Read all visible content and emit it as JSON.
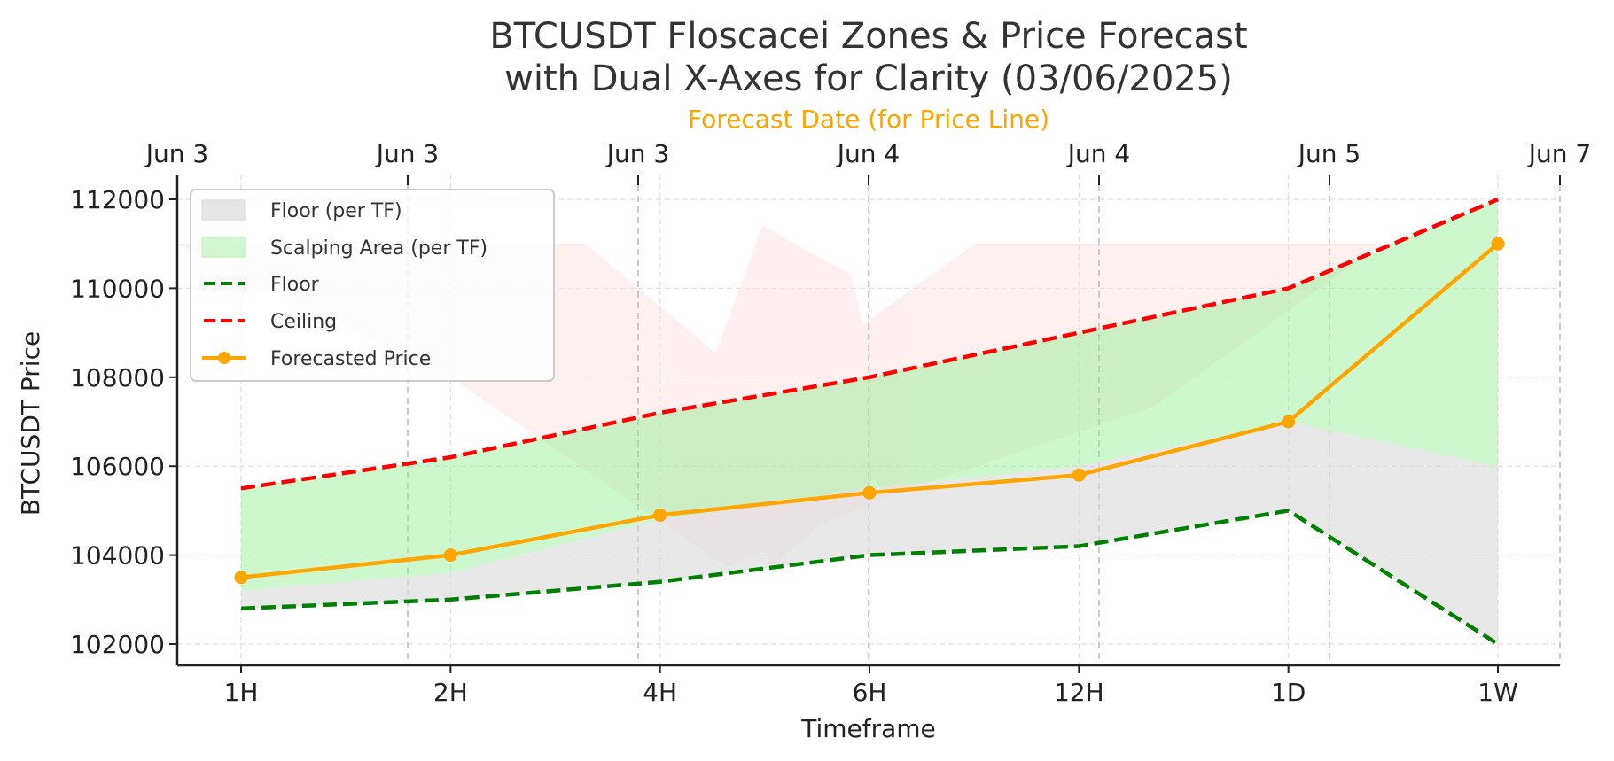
{
  "chart_data": {
    "type": "line",
    "title_line1": "BTCUSDT Floscacei Zones & Price Forecast",
    "title_line2": "with Dual X-Axes for Clarity (03/06/2025)",
    "xlabel": "Timeframe",
    "ylabel": "BTCUSDT Price",
    "top_xlabel": "Forecast Date (for Price Line)",
    "categories": [
      "1H",
      "2H",
      "4H",
      "6H",
      "12H",
      "1D",
      "1W"
    ],
    "top_ticks": [
      "Jun 3",
      "Jun 3",
      "Jun 3",
      "Jun 4",
      "Jun 4",
      "Jun 5",
      "Jun 7"
    ],
    "ylim": [
      101500,
      112500
    ],
    "yticks": [
      102000,
      104000,
      106000,
      108000,
      110000,
      112000
    ],
    "grid": true,
    "legend_position": "top-left",
    "series": [
      {
        "name": "Floor",
        "style": "dashed",
        "color": "#008000",
        "values": [
          102800,
          103000,
          103400,
          104000,
          104200,
          105000,
          102000
        ]
      },
      {
        "name": "Ceiling",
        "style": "dashed",
        "color": "#ff0000",
        "values": [
          105500,
          106200,
          107200,
          108000,
          109000,
          110000,
          112000
        ]
      },
      {
        "name": "Forecasted Price",
        "style": "solid-markers",
        "color": "#ffa500",
        "values": [
          103500,
          104000,
          104900,
          105400,
          105800,
          107000,
          111000
        ]
      }
    ],
    "areas": [
      {
        "name": "Floor (per TF)",
        "color": "#d9d9d9",
        "lower": [
          102800,
          103000,
          103400,
          104000,
          104200,
          105000,
          102000
        ],
        "upper": [
          103200,
          103600,
          104800,
          105500,
          106000,
          107000,
          106000
        ]
      },
      {
        "name": "Scalping Area (per TF)",
        "color": "#90ee90",
        "lower": [
          103200,
          103600,
          104800,
          105500,
          106000,
          107000,
          106000
        ],
        "upper": [
          105500,
          106200,
          107200,
          108000,
          109000,
          110000,
          112000
        ]
      }
    ],
    "top_axis_color": "#ffa500"
  }
}
